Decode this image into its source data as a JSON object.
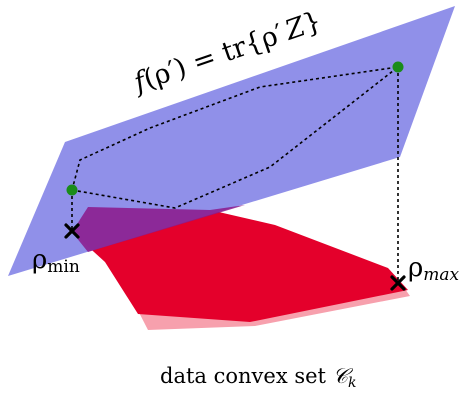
{
  "diagram": {
    "plane_label": {
      "f": "f",
      "open_paren": "(",
      "rho": "ρ",
      "prime": "′",
      "close_paren_equals": ") =",
      "tr": "tr",
      "open_brace": "{",
      "rho2": "ρ",
      "prime2": "′",
      "z": "Z",
      "close_brace": "}"
    },
    "rho_min_label": {
      "rho": "ρ",
      "subscript": "min"
    },
    "rho_max_label": {
      "rho": "ρ",
      "subscript": "max"
    },
    "caption": {
      "text": "data convex set ",
      "set_symbol": "𝒞",
      "subscript": "k"
    },
    "colors": {
      "plane": "#8a8ae8",
      "convex_set": "#e4002b",
      "convex_set_shadow": "#f7a0ad",
      "overlap": "#8c1a8c",
      "point": "#1a8c1a",
      "dotted_line": "#000000",
      "marker": "#000000"
    }
  }
}
